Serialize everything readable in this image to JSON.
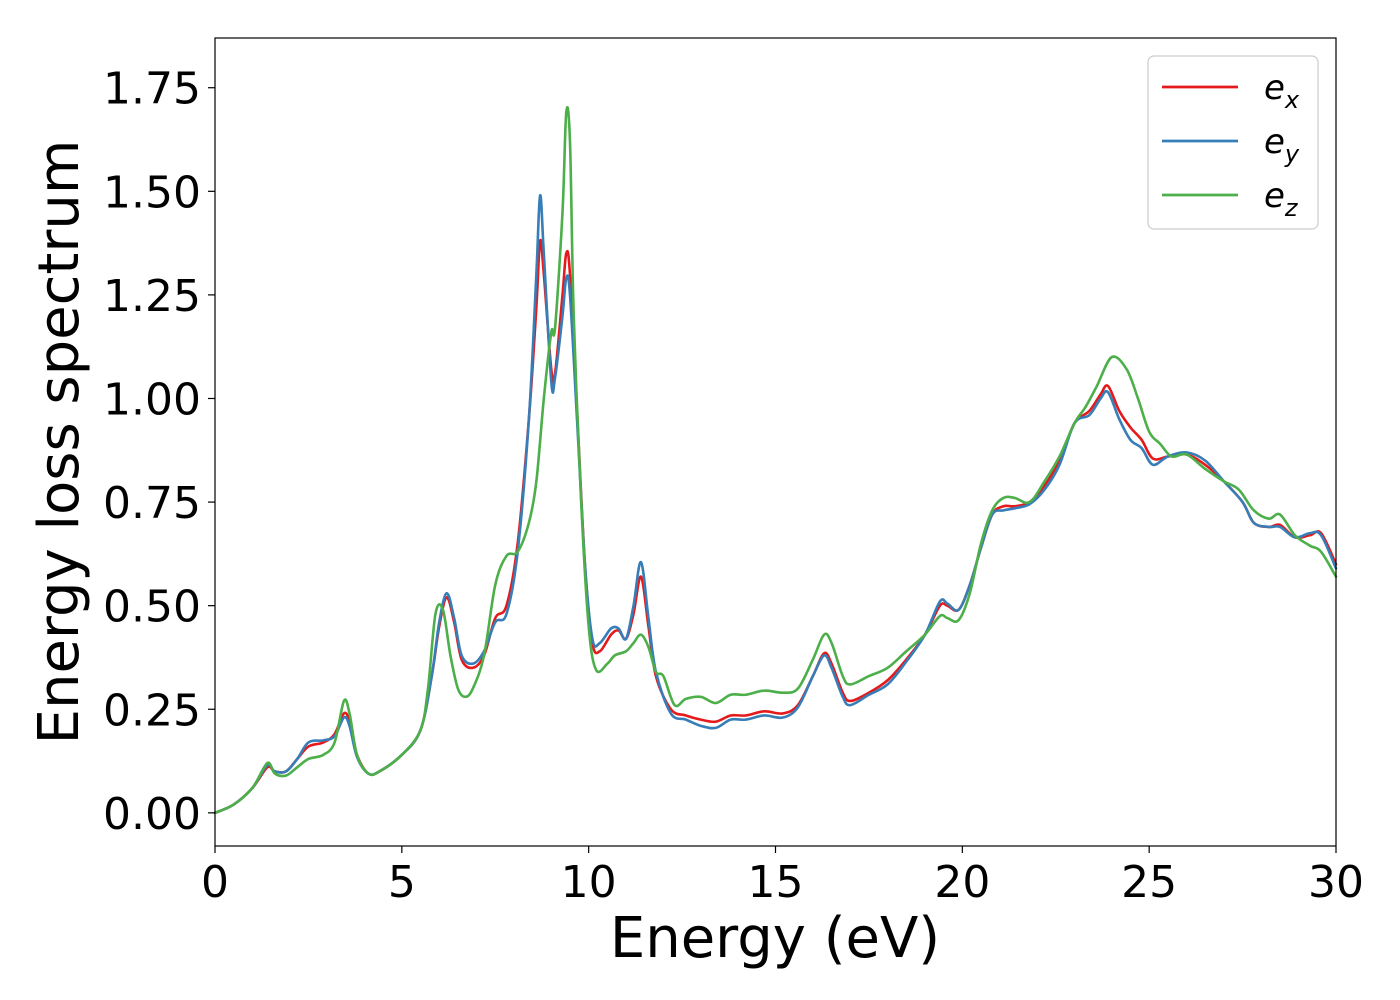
{
  "chart_data": {
    "type": "line",
    "xlabel": "Energy (eV)",
    "ylabel": "Energy loss spectrum",
    "xlim": [
      0,
      30
    ],
    "ylim": [
      -0.08,
      1.87
    ],
    "xticks": [
      0,
      5,
      10,
      15,
      20,
      25,
      30
    ],
    "yticks": [
      0.0,
      0.25,
      0.5,
      0.75,
      1.0,
      1.25,
      1.5,
      1.75
    ],
    "xtick_labels": [
      "0",
      "5",
      "10",
      "15",
      "20",
      "25",
      "30"
    ],
    "ytick_labels": [
      "0.00",
      "0.25",
      "0.50",
      "0.75",
      "1.00",
      "1.25",
      "1.50",
      "1.75"
    ],
    "grid": false,
    "legend_position": "top-right",
    "series": [
      {
        "name": "e",
        "subscript": "x",
        "color": "#e41a1c",
        "points": [
          [
            0,
            0.0
          ],
          [
            0.5,
            0.02
          ],
          [
            1.0,
            0.06
          ],
          [
            1.4,
            0.11
          ],
          [
            1.6,
            0.1
          ],
          [
            1.9,
            0.1
          ],
          [
            2.2,
            0.13
          ],
          [
            2.5,
            0.16
          ],
          [
            2.9,
            0.17
          ],
          [
            3.2,
            0.19
          ],
          [
            3.45,
            0.24
          ],
          [
            3.6,
            0.22
          ],
          [
            3.8,
            0.14
          ],
          [
            4.1,
            0.095
          ],
          [
            4.4,
            0.1
          ],
          [
            5.0,
            0.14
          ],
          [
            5.5,
            0.2
          ],
          [
            5.8,
            0.33
          ],
          [
            6.0,
            0.45
          ],
          [
            6.2,
            0.52
          ],
          [
            6.4,
            0.46
          ],
          [
            6.6,
            0.37
          ],
          [
            6.9,
            0.35
          ],
          [
            7.2,
            0.38
          ],
          [
            7.5,
            0.47
          ],
          [
            7.8,
            0.5
          ],
          [
            8.1,
            0.65
          ],
          [
            8.4,
            0.95
          ],
          [
            8.6,
            1.22
          ],
          [
            8.7,
            1.38
          ],
          [
            8.8,
            1.3
          ],
          [
            9.0,
            1.07
          ],
          [
            9.1,
            1.06
          ],
          [
            9.3,
            1.25
          ],
          [
            9.4,
            1.35
          ],
          [
            9.5,
            1.3
          ],
          [
            9.7,
            0.95
          ],
          [
            9.9,
            0.6
          ],
          [
            10.1,
            0.41
          ],
          [
            10.3,
            0.39
          ],
          [
            10.6,
            0.43
          ],
          [
            10.8,
            0.44
          ],
          [
            11.0,
            0.42
          ],
          [
            11.2,
            0.48
          ],
          [
            11.4,
            0.57
          ],
          [
            11.6,
            0.45
          ],
          [
            11.8,
            0.33
          ],
          [
            12.2,
            0.25
          ],
          [
            12.6,
            0.235
          ],
          [
            13.0,
            0.225
          ],
          [
            13.4,
            0.22
          ],
          [
            13.8,
            0.235
          ],
          [
            14.2,
            0.235
          ],
          [
            14.7,
            0.245
          ],
          [
            15.2,
            0.24
          ],
          [
            15.6,
            0.26
          ],
          [
            16.0,
            0.33
          ],
          [
            16.3,
            0.385
          ],
          [
            16.5,
            0.36
          ],
          [
            16.8,
            0.29
          ],
          [
            17.0,
            0.27
          ],
          [
            17.5,
            0.29
          ],
          [
            18.0,
            0.32
          ],
          [
            18.5,
            0.37
          ],
          [
            19.0,
            0.43
          ],
          [
            19.4,
            0.5
          ],
          [
            19.6,
            0.5
          ],
          [
            19.9,
            0.49
          ],
          [
            20.2,
            0.55
          ],
          [
            20.5,
            0.64
          ],
          [
            20.8,
            0.72
          ],
          [
            21.1,
            0.74
          ],
          [
            21.4,
            0.74
          ],
          [
            21.8,
            0.75
          ],
          [
            22.2,
            0.79
          ],
          [
            22.6,
            0.85
          ],
          [
            23.0,
            0.94
          ],
          [
            23.4,
            0.97
          ],
          [
            23.7,
            1.01
          ],
          [
            23.9,
            1.03
          ],
          [
            24.2,
            0.97
          ],
          [
            24.5,
            0.93
          ],
          [
            24.8,
            0.9
          ],
          [
            25.1,
            0.855
          ],
          [
            25.5,
            0.86
          ],
          [
            26.0,
            0.865
          ],
          [
            26.5,
            0.84
          ],
          [
            27.0,
            0.8
          ],
          [
            27.5,
            0.75
          ],
          [
            27.8,
            0.7
          ],
          [
            28.2,
            0.69
          ],
          [
            28.5,
            0.695
          ],
          [
            28.9,
            0.665
          ],
          [
            29.3,
            0.67
          ],
          [
            29.6,
            0.675
          ],
          [
            30.0,
            0.6
          ]
        ]
      },
      {
        "name": "e",
        "subscript": "y",
        "color": "#377eb8",
        "points": [
          [
            0,
            0.0
          ],
          [
            0.5,
            0.02
          ],
          [
            1.0,
            0.06
          ],
          [
            1.4,
            0.115
          ],
          [
            1.6,
            0.1
          ],
          [
            1.9,
            0.1
          ],
          [
            2.2,
            0.13
          ],
          [
            2.5,
            0.17
          ],
          [
            2.9,
            0.175
          ],
          [
            3.2,
            0.185
          ],
          [
            3.45,
            0.23
          ],
          [
            3.6,
            0.21
          ],
          [
            3.8,
            0.135
          ],
          [
            4.1,
            0.095
          ],
          [
            4.4,
            0.1
          ],
          [
            5.0,
            0.14
          ],
          [
            5.5,
            0.2
          ],
          [
            5.8,
            0.33
          ],
          [
            6.0,
            0.46
          ],
          [
            6.2,
            0.53
          ],
          [
            6.4,
            0.47
          ],
          [
            6.6,
            0.38
          ],
          [
            6.9,
            0.36
          ],
          [
            7.2,
            0.39
          ],
          [
            7.5,
            0.46
          ],
          [
            7.8,
            0.48
          ],
          [
            8.1,
            0.63
          ],
          [
            8.4,
            0.95
          ],
          [
            8.6,
            1.3
          ],
          [
            8.7,
            1.49
          ],
          [
            8.8,
            1.35
          ],
          [
            9.0,
            1.04
          ],
          [
            9.1,
            1.05
          ],
          [
            9.3,
            1.2
          ],
          [
            9.4,
            1.29
          ],
          [
            9.5,
            1.25
          ],
          [
            9.7,
            0.93
          ],
          [
            9.9,
            0.6
          ],
          [
            10.1,
            0.42
          ],
          [
            10.3,
            0.41
          ],
          [
            10.6,
            0.445
          ],
          [
            10.8,
            0.445
          ],
          [
            11.0,
            0.42
          ],
          [
            11.2,
            0.5
          ],
          [
            11.4,
            0.605
          ],
          [
            11.6,
            0.47
          ],
          [
            11.8,
            0.34
          ],
          [
            12.2,
            0.24
          ],
          [
            12.6,
            0.225
          ],
          [
            13.0,
            0.21
          ],
          [
            13.4,
            0.205
          ],
          [
            13.8,
            0.225
          ],
          [
            14.2,
            0.225
          ],
          [
            14.7,
            0.235
          ],
          [
            15.2,
            0.23
          ],
          [
            15.6,
            0.255
          ],
          [
            16.0,
            0.33
          ],
          [
            16.3,
            0.38
          ],
          [
            16.5,
            0.35
          ],
          [
            16.8,
            0.28
          ],
          [
            17.0,
            0.26
          ],
          [
            17.5,
            0.285
          ],
          [
            18.0,
            0.31
          ],
          [
            18.5,
            0.365
          ],
          [
            19.0,
            0.43
          ],
          [
            19.4,
            0.51
          ],
          [
            19.6,
            0.505
          ],
          [
            19.9,
            0.49
          ],
          [
            20.2,
            0.55
          ],
          [
            20.5,
            0.64
          ],
          [
            20.8,
            0.72
          ],
          [
            21.1,
            0.73
          ],
          [
            21.4,
            0.735
          ],
          [
            21.8,
            0.745
          ],
          [
            22.2,
            0.78
          ],
          [
            22.6,
            0.84
          ],
          [
            23.0,
            0.94
          ],
          [
            23.4,
            0.96
          ],
          [
            23.7,
            1.0
          ],
          [
            23.9,
            1.015
          ],
          [
            24.2,
            0.95
          ],
          [
            24.5,
            0.9
          ],
          [
            24.8,
            0.88
          ],
          [
            25.1,
            0.84
          ],
          [
            25.5,
            0.86
          ],
          [
            26.0,
            0.87
          ],
          [
            26.5,
            0.85
          ],
          [
            27.0,
            0.8
          ],
          [
            27.5,
            0.75
          ],
          [
            27.8,
            0.7
          ],
          [
            28.2,
            0.69
          ],
          [
            28.5,
            0.69
          ],
          [
            28.9,
            0.665
          ],
          [
            29.3,
            0.675
          ],
          [
            29.6,
            0.67
          ],
          [
            30.0,
            0.59
          ]
        ]
      },
      {
        "name": "e",
        "subscript": "z",
        "color": "#4daf4a",
        "points": [
          [
            0,
            0.0
          ],
          [
            0.5,
            0.02
          ],
          [
            1.0,
            0.06
          ],
          [
            1.4,
            0.12
          ],
          [
            1.6,
            0.095
          ],
          [
            1.9,
            0.09
          ],
          [
            2.2,
            0.11
          ],
          [
            2.5,
            0.13
          ],
          [
            2.9,
            0.14
          ],
          [
            3.2,
            0.17
          ],
          [
            3.45,
            0.27
          ],
          [
            3.6,
            0.24
          ],
          [
            3.8,
            0.14
          ],
          [
            4.1,
            0.095
          ],
          [
            4.4,
            0.1
          ],
          [
            5.0,
            0.14
          ],
          [
            5.5,
            0.2
          ],
          [
            5.7,
            0.3
          ],
          [
            5.9,
            0.48
          ],
          [
            6.1,
            0.49
          ],
          [
            6.3,
            0.38
          ],
          [
            6.5,
            0.3
          ],
          [
            6.7,
            0.28
          ],
          [
            6.9,
            0.3
          ],
          [
            7.2,
            0.38
          ],
          [
            7.5,
            0.55
          ],
          [
            7.8,
            0.62
          ],
          [
            8.1,
            0.63
          ],
          [
            8.4,
            0.7
          ],
          [
            8.6,
            0.8
          ],
          [
            8.8,
            1.0
          ],
          [
            9.0,
            1.16
          ],
          [
            9.1,
            1.17
          ],
          [
            9.3,
            1.45
          ],
          [
            9.4,
            1.69
          ],
          [
            9.5,
            1.62
          ],
          [
            9.6,
            1.2
          ],
          [
            9.8,
            0.75
          ],
          [
            10.0,
            0.45
          ],
          [
            10.2,
            0.345
          ],
          [
            10.5,
            0.36
          ],
          [
            10.7,
            0.38
          ],
          [
            11.0,
            0.39
          ],
          [
            11.2,
            0.41
          ],
          [
            11.4,
            0.43
          ],
          [
            11.6,
            0.4
          ],
          [
            11.8,
            0.34
          ],
          [
            12.0,
            0.33
          ],
          [
            12.3,
            0.26
          ],
          [
            12.6,
            0.275
          ],
          [
            13.0,
            0.28
          ],
          [
            13.4,
            0.265
          ],
          [
            13.8,
            0.285
          ],
          [
            14.2,
            0.285
          ],
          [
            14.7,
            0.295
          ],
          [
            15.2,
            0.29
          ],
          [
            15.6,
            0.3
          ],
          [
            16.0,
            0.37
          ],
          [
            16.3,
            0.43
          ],
          [
            16.5,
            0.41
          ],
          [
            16.8,
            0.33
          ],
          [
            17.0,
            0.31
          ],
          [
            17.5,
            0.33
          ],
          [
            18.0,
            0.35
          ],
          [
            18.5,
            0.39
          ],
          [
            19.0,
            0.43
          ],
          [
            19.4,
            0.475
          ],
          [
            19.6,
            0.47
          ],
          [
            19.9,
            0.465
          ],
          [
            20.2,
            0.53
          ],
          [
            20.5,
            0.65
          ],
          [
            20.8,
            0.73
          ],
          [
            21.1,
            0.76
          ],
          [
            21.4,
            0.76
          ],
          [
            21.8,
            0.75
          ],
          [
            22.2,
            0.8
          ],
          [
            22.6,
            0.86
          ],
          [
            23.0,
            0.94
          ],
          [
            23.3,
            0.98
          ],
          [
            23.6,
            1.03
          ],
          [
            24.0,
            1.1
          ],
          [
            24.4,
            1.07
          ],
          [
            24.7,
            1.0
          ],
          [
            25.0,
            0.92
          ],
          [
            25.3,
            0.89
          ],
          [
            25.6,
            0.86
          ],
          [
            26.0,
            0.865
          ],
          [
            26.5,
            0.83
          ],
          [
            27.0,
            0.8
          ],
          [
            27.4,
            0.78
          ],
          [
            27.8,
            0.73
          ],
          [
            28.2,
            0.71
          ],
          [
            28.5,
            0.72
          ],
          [
            28.9,
            0.67
          ],
          [
            29.3,
            0.645
          ],
          [
            29.6,
            0.63
          ],
          [
            30.0,
            0.57
          ]
        ]
      }
    ]
  }
}
